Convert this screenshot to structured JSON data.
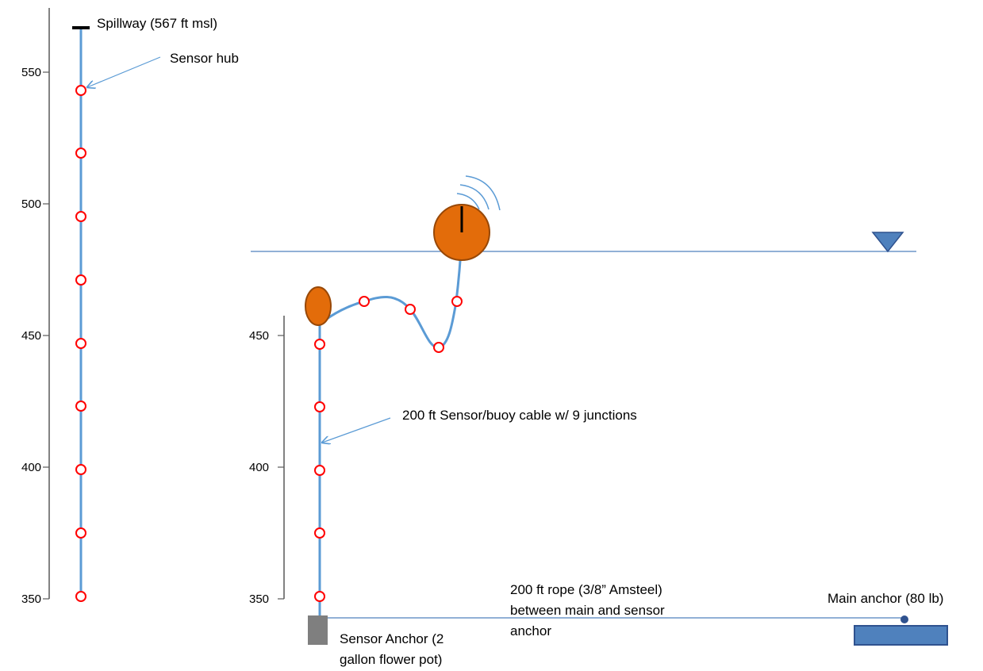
{
  "labels": {
    "spillway": "Spillway (567 ft msl)",
    "sensor_hub": "Sensor hub",
    "cable": "200 ft Sensor/buoy  cable w/ 9  junctions",
    "rope_line1": "200 ft rope (3/8” Amsteel)",
    "rope_line2": "between main and sensor",
    "rope_line3": "anchor",
    "main_anchor": "Main anchor (80 lb)",
    "sensor_anchor_line1": "Sensor Anchor (2",
    "sensor_anchor_line2": "gallon flower pot)"
  },
  "left_axis": {
    "ticks": [
      "550",
      "500",
      "450",
      "400",
      "350"
    ]
  },
  "right_axis": {
    "ticks": [
      "450",
      "400",
      "350"
    ]
  },
  "colors": {
    "cable": "#5b9bd5",
    "arrow": "#5b9bd5",
    "junction": "#ff0000",
    "buoy_fill": "#e36c0a",
    "buoy_stroke": "#984807",
    "water_line": "#4f81bd",
    "water_marker_fill": "#4f81bd",
    "water_marker_stroke": "#2f528f",
    "anchor_gray": "#7f7f7f",
    "main_anchor_fill": "#4f81bd",
    "main_anchor_stroke": "#2f528f",
    "axis": "#595959"
  },
  "icons": {
    "water_surface_marker": "inverted-triangle-icon",
    "radio_signal": "wireless-signal-icon"
  }
}
